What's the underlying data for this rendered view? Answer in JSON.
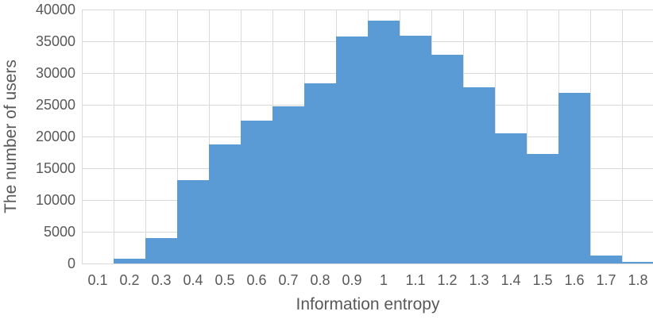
{
  "chart_data": {
    "type": "bar",
    "subtype": "histogram",
    "title": "",
    "categories": [
      "0.1",
      "0.2",
      "0.3",
      "0.4",
      "0.5",
      "0.6",
      "0.7",
      "0.8",
      "0.9",
      "1",
      "1.1",
      "1.2",
      "1.3",
      "1.4",
      "1.5",
      "1.6",
      "1.7",
      "1.8"
    ],
    "values": [
      0,
      700,
      4000,
      13100,
      18700,
      22500,
      24700,
      28400,
      35700,
      38300,
      35900,
      32900,
      27700,
      20500,
      17300,
      26900,
      1300,
      300
    ],
    "xlabel": "Information entropy",
    "ylabel": "The number of users",
    "ylim": [
      0,
      40000
    ],
    "yticks": [
      0,
      5000,
      10000,
      15000,
      20000,
      25000,
      30000,
      35000,
      40000
    ],
    "grid": "major-horizontal-and-vertical",
    "legend": "none",
    "bar_gap": 0,
    "colors": {
      "bar": "#5B9BD5",
      "grid": "#D9D9D9",
      "text": "#595959",
      "background": "#FFFFFF"
    }
  }
}
